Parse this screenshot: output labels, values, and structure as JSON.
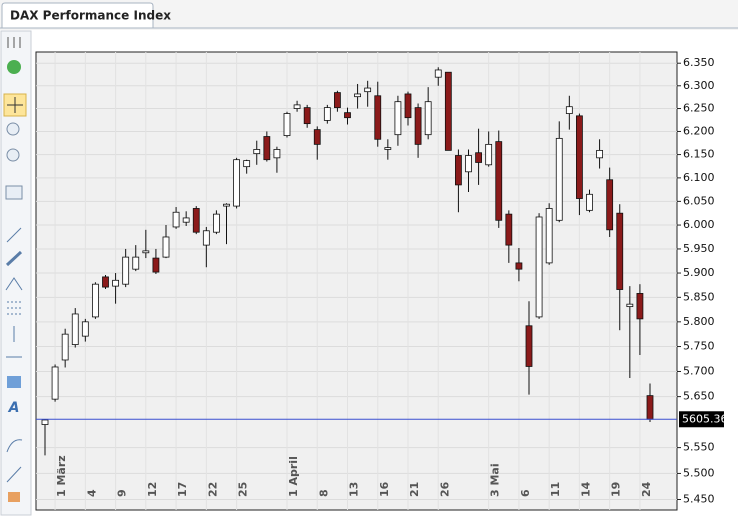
{
  "tab": "DAX Performance Index",
  "chart_data": {
    "type": "candlestick",
    "log": true,
    "grid": true,
    "up_color": "#ffffff",
    "down_color": "#8b1a1a",
    "last_line_color": "#3b4fd0",
    "categories": [
      null,
      "1 März",
      null,
      null,
      "4",
      null,
      null,
      "9",
      null,
      null,
      "12",
      null,
      null,
      "17",
      null,
      null,
      "22",
      null,
      null,
      "25",
      null,
      null,
      null,
      null,
      "1 April",
      null,
      null,
      "8",
      null,
      null,
      "13",
      null,
      null,
      "16",
      null,
      null,
      "21",
      null,
      null,
      "26",
      null,
      null,
      null,
      null,
      "3 Mai",
      null,
      null,
      "6",
      null,
      null,
      "11",
      null,
      null,
      "14",
      null,
      null,
      "19",
      null,
      null,
      "24",
      null
    ],
    "open": [
      5595,
      5645,
      5723,
      5754,
      5771,
      5810,
      5892,
      5873,
      5877,
      5908,
      5942,
      5931,
      5933,
      5996,
      6006,
      6035,
      5958,
      5985,
      6040,
      6040,
      6124,
      6152,
      6189,
      6143,
      6191,
      6250,
      6252,
      6204,
      6224,
      6285,
      6241,
      6276,
      6287,
      6278,
      6161,
      6193,
      6282,
      6252,
      6193,
      6319,
      6330,
      6148,
      6113,
      6154,
      6128,
      6178,
      6023,
      5921,
      5792,
      5810,
      5921,
      6010,
      6239,
      6234,
      6031,
      6143,
      6096,
      6025,
      5831,
      5858,
      5652
    ],
    "high": [
      5605,
      5714,
      5786,
      5828,
      5806,
      5881,
      5896,
      5900,
      5950,
      5958,
      5990,
      5950,
      6000,
      6038,
      6029,
      6040,
      5996,
      6031,
      6046,
      6143,
      6139,
      6180,
      6200,
      6167,
      6243,
      6267,
      6258,
      6211,
      6258,
      6289,
      6252,
      6304,
      6311,
      6309,
      6183,
      6278,
      6287,
      6261,
      6297,
      6341,
      6330,
      6161,
      6161,
      6206,
      6200,
      6202,
      6031,
      5952,
      5842,
      6025,
      6046,
      6222,
      6278,
      6239,
      6075,
      6183,
      6122,
      6044,
      5873,
      5877,
      5676
    ],
    "low": [
      5535,
      5640,
      5708,
      5748,
      5760,
      5806,
      5867,
      5837,
      5871,
      5904,
      5931,
      5898,
      5931,
      5992,
      5998,
      5981,
      5912,
      5981,
      5960,
      6035,
      6109,
      6128,
      6135,
      6111,
      6187,
      6243,
      6208,
      6139,
      6217,
      6243,
      6215,
      6250,
      6254,
      6167,
      6139,
      6169,
      6213,
      6143,
      6183,
      6300,
      6159,
      6027,
      6070,
      6085,
      6124,
      5994,
      5921,
      5883,
      5654,
      5806,
      5917,
      6006,
      6204,
      6021,
      6027,
      6120,
      5975,
      5783,
      5687,
      5733,
      5600
    ],
    "close": [
      5604,
      5709,
      5775,
      5816,
      5800,
      5877,
      5871,
      5885,
      5933,
      5933,
      5946,
      5902,
      5975,
      6027,
      6015,
      5985,
      5988,
      6023,
      6044,
      6139,
      6137,
      6161,
      6139,
      6161,
      6239,
      6258,
      6217,
      6172,
      6252,
      6252,
      6230,
      6282,
      6295,
      6183,
      6165,
      6265,
      6230,
      6172,
      6265,
      6335,
      6159,
      6085,
      6148,
      6133,
      6172,
      6010,
      5958,
      5908,
      5710,
      6017,
      6035,
      6185,
      6254,
      6056,
      6065,
      6159,
      5990,
      5866,
      5836,
      5806,
      5605.36
    ],
    "last_price": 5605.36,
    "ylim": [
      5430,
      6375
    ],
    "yticks": [
      {
        "value": 6350,
        "label": "6.350"
      },
      {
        "value": 6300,
        "label": "6.300"
      },
      {
        "value": 6250,
        "label": "6.250"
      },
      {
        "value": 6200,
        "label": "6.200"
      },
      {
        "value": 6150,
        "label": "6.150"
      },
      {
        "value": 6100,
        "label": "6.100"
      },
      {
        "value": 6050,
        "label": "6.050"
      },
      {
        "value": 6000,
        "label": "6.000"
      },
      {
        "value": 5950,
        "label": "5.950"
      },
      {
        "value": 5900,
        "label": "5.900"
      },
      {
        "value": 5850,
        "label": "5.850"
      },
      {
        "value": 5800,
        "label": "5.800"
      },
      {
        "value": 5750,
        "label": "5.750"
      },
      {
        "value": 5700,
        "label": "5.700"
      },
      {
        "value": 5650,
        "label": "5.650"
      },
      {
        "value": 5550,
        "label": "5.550"
      },
      {
        "value": 5500,
        "label": "5.500"
      },
      {
        "value": 5450,
        "label": "5.450"
      }
    ]
  }
}
